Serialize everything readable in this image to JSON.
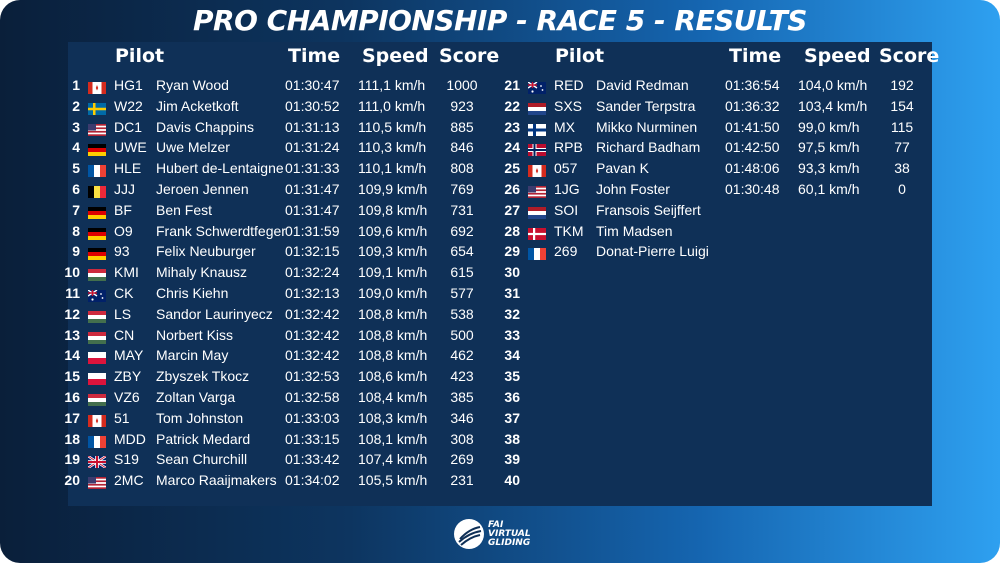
{
  "title": "PRO CHAMPIONSHIP - RACE 5 - RESULTS",
  "headers": {
    "pilot": "Pilot",
    "time": "Time",
    "speed": "Speed",
    "score": "Score"
  },
  "logo": {
    "line1": "FAI",
    "line2": "VIRTUAL",
    "line3": "GLIDING"
  },
  "left": [
    {
      "pos": "1",
      "flag": "ca",
      "code": "HG1",
      "name": "Ryan Wood",
      "time": "01:30:47",
      "speed": "111,1 km/h",
      "score": "1000"
    },
    {
      "pos": "2",
      "flag": "se",
      "code": "W22",
      "name": "Jim Acketkoft",
      "time": "01:30:52",
      "speed": "111,0 km/h",
      "score": "923"
    },
    {
      "pos": "3",
      "flag": "us",
      "code": "DC1",
      "name": "Davis Chappins",
      "time": "01:31:13",
      "speed": "110,5 km/h",
      "score": "885"
    },
    {
      "pos": "4",
      "flag": "de",
      "code": "UWE",
      "name": "Uwe Melzer",
      "time": "01:31:24",
      "speed": "110,3 km/h",
      "score": "846"
    },
    {
      "pos": "5",
      "flag": "fr",
      "code": "HLE",
      "name": "Hubert de-Lentaigne",
      "time": "01:31:33",
      "speed": "110,1 km/h",
      "score": "808"
    },
    {
      "pos": "6",
      "flag": "be",
      "code": "JJJ",
      "name": "Jeroen Jennen",
      "time": "01:31:47",
      "speed": "109,9 km/h",
      "score": "769"
    },
    {
      "pos": "7",
      "flag": "de",
      "code": "BF",
      "name": "Ben Fest",
      "time": "01:31:47",
      "speed": "109,8 km/h",
      "score": "731"
    },
    {
      "pos": "8",
      "flag": "de",
      "code": "O9",
      "name": "Frank Schwerdtfeger",
      "time": "01:31:59",
      "speed": "109,6 km/h",
      "score": "692"
    },
    {
      "pos": "9",
      "flag": "de",
      "code": "93",
      "name": "Felix Neuburger",
      "time": "01:32:15",
      "speed": "109,3 km/h",
      "score": "654"
    },
    {
      "pos": "10",
      "flag": "hu",
      "code": "KMI",
      "name": "Mihaly Knausz",
      "time": "01:32:24",
      "speed": "109,1 km/h",
      "score": "615"
    },
    {
      "pos": "11",
      "flag": "au",
      "code": "CK",
      "name": "Chris Kiehn",
      "time": "01:32:13",
      "speed": "109,0 km/h",
      "score": "577"
    },
    {
      "pos": "12",
      "flag": "hu",
      "code": "LS",
      "name": "Sandor Laurinyecz",
      "time": "01:32:42",
      "speed": "108,8 km/h",
      "score": "538"
    },
    {
      "pos": "13",
      "flag": "hu",
      "code": "CN",
      "name": "Norbert Kiss",
      "time": "01:32:42",
      "speed": "108,8 km/h",
      "score": "500"
    },
    {
      "pos": "14",
      "flag": "pl",
      "code": "MAY",
      "name": "Marcin May",
      "time": "01:32:42",
      "speed": "108,8 km/h",
      "score": "462"
    },
    {
      "pos": "15",
      "flag": "pl",
      "code": "ZBY",
      "name": "Zbyszek Tkocz",
      "time": "01:32:53",
      "speed": "108,6 km/h",
      "score": "423"
    },
    {
      "pos": "16",
      "flag": "hu",
      "code": "VZ6",
      "name": "Zoltan Varga",
      "time": "01:32:58",
      "speed": "108,4 km/h",
      "score": "385"
    },
    {
      "pos": "17",
      "flag": "ca",
      "code": "51",
      "name": "Tom Johnston",
      "time": "01:33:03",
      "speed": "108,3 km/h",
      "score": "346"
    },
    {
      "pos": "18",
      "flag": "fr",
      "code": "MDD",
      "name": "Patrick Medard",
      "time": "01:33:15",
      "speed": "108,1 km/h",
      "score": "308"
    },
    {
      "pos": "19",
      "flag": "gb",
      "code": "S19",
      "name": "Sean Churchill",
      "time": "01:33:42",
      "speed": "107,4 km/h",
      "score": "269"
    },
    {
      "pos": "20",
      "flag": "us",
      "code": "2MC",
      "name": "Marco Raaijmakers",
      "time": "01:34:02",
      "speed": "105,5 km/h",
      "score": "231"
    }
  ],
  "right": [
    {
      "pos": "21",
      "flag": "au",
      "code": "RED",
      "name": "David Redman",
      "time": "01:36:54",
      "speed": "104,0 km/h",
      "score": "192"
    },
    {
      "pos": "22",
      "flag": "nl",
      "code": "SXS",
      "name": "Sander Terpstra",
      "time": "01:36:32",
      "speed": "103,4 km/h",
      "score": "154"
    },
    {
      "pos": "23",
      "flag": "fi",
      "code": "MX",
      "name": "Mikko Nurminen",
      "time": "01:41:50",
      "speed": "99,0 km/h",
      "score": "115"
    },
    {
      "pos": "24",
      "flag": "no",
      "code": "RPB",
      "name": "Richard Badham",
      "time": "01:42:50",
      "speed": "97,5 km/h",
      "score": "77"
    },
    {
      "pos": "25",
      "flag": "ca",
      "code": "057",
      "name": "Pavan K",
      "time": "01:48:06",
      "speed": "93,3 km/h",
      "score": "38"
    },
    {
      "pos": "26",
      "flag": "us",
      "code": "1JG",
      "name": "John Foster",
      "time": "01:30:48",
      "speed": "60,1 km/h",
      "score": "0"
    },
    {
      "pos": "27",
      "flag": "nl",
      "code": "SOI",
      "name": "Fransois Seijffert",
      "time": "",
      "speed": "",
      "score": ""
    },
    {
      "pos": "28",
      "flag": "dk",
      "code": "TKM",
      "name": "Tim Madsen",
      "time": "",
      "speed": "",
      "score": ""
    },
    {
      "pos": "29",
      "flag": "fr",
      "code": "269",
      "name": "Donat-Pierre Luigi",
      "time": "",
      "speed": "",
      "score": ""
    },
    {
      "pos": "30",
      "flag": "",
      "code": "",
      "name": "",
      "time": "",
      "speed": "",
      "score": ""
    },
    {
      "pos": "31",
      "flag": "",
      "code": "",
      "name": "",
      "time": "",
      "speed": "",
      "score": ""
    },
    {
      "pos": "32",
      "flag": "",
      "code": "",
      "name": "",
      "time": "",
      "speed": "",
      "score": ""
    },
    {
      "pos": "33",
      "flag": "",
      "code": "",
      "name": "",
      "time": "",
      "speed": "",
      "score": ""
    },
    {
      "pos": "34",
      "flag": "",
      "code": "",
      "name": "",
      "time": "",
      "speed": "",
      "score": ""
    },
    {
      "pos": "35",
      "flag": "",
      "code": "",
      "name": "",
      "time": "",
      "speed": "",
      "score": ""
    },
    {
      "pos": "36",
      "flag": "",
      "code": "",
      "name": "",
      "time": "",
      "speed": "",
      "score": ""
    },
    {
      "pos": "37",
      "flag": "",
      "code": "",
      "name": "",
      "time": "",
      "speed": "",
      "score": ""
    },
    {
      "pos": "38",
      "flag": "",
      "code": "",
      "name": "",
      "time": "",
      "speed": "",
      "score": ""
    },
    {
      "pos": "39",
      "flag": "",
      "code": "",
      "name": "",
      "time": "",
      "speed": "",
      "score": ""
    },
    {
      "pos": "40",
      "flag": "",
      "code": "",
      "name": "",
      "time": "",
      "speed": "",
      "score": ""
    }
  ]
}
